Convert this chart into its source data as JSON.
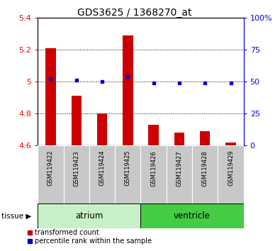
{
  "title": "GDS3625 / 1368270_at",
  "samples": [
    "GSM119422",
    "GSM119423",
    "GSM119424",
    "GSM119425",
    "GSM119426",
    "GSM119427",
    "GSM119428",
    "GSM119429"
  ],
  "red_values": [
    5.21,
    4.91,
    4.8,
    5.29,
    4.73,
    4.68,
    4.69,
    4.62
  ],
  "blue_values": [
    52,
    51,
    50,
    54,
    49,
    49,
    49,
    49
  ],
  "base_value": 4.6,
  "ylim_left": [
    4.6,
    5.4
  ],
  "ylim_right": [
    0,
    100
  ],
  "yticks_left": [
    4.6,
    4.8,
    5.0,
    5.2,
    5.4
  ],
  "yticks_right": [
    0,
    25,
    50,
    75,
    100
  ],
  "ytick_right_labels": [
    "0",
    "25",
    "50",
    "75",
    "100%"
  ],
  "bar_color": "#cc0000",
  "dot_color": "#0000cc",
  "label_area_color": "#c8c8c8",
  "atrium_color": "#c8f0c8",
  "ventricle_color": "#44cc44",
  "tissue_label": "tissue",
  "legend_red": "transformed count",
  "legend_blue": "percentile rank within the sample",
  "bar_width": 0.4
}
